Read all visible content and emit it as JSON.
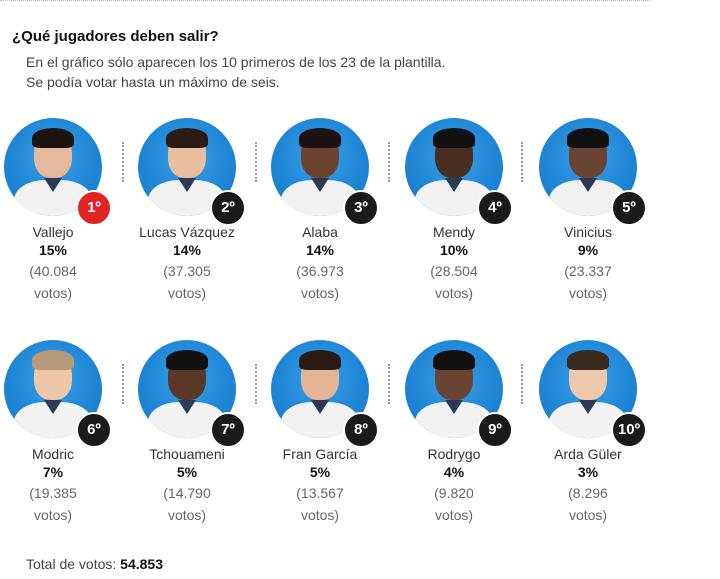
{
  "title": "¿Qué jugadores deben salir?",
  "subtitle": [
    "En el gráfico sólo aparecen los 10 primeros de los 23 de la plantilla.",
    "Se podía votar hasta un máximo de seis."
  ],
  "total_label": "Total de votos:",
  "total_value": "54.853",
  "colors": {
    "circle": "#1f86d6",
    "rank_badge": "#1a1a1a",
    "rank_badge_first": "#e02424"
  },
  "chart_data": {
    "type": "table",
    "columns": [
      "rank",
      "name",
      "percent",
      "votes"
    ],
    "rows": [
      {
        "rank": "1º",
        "name": "Vallejo",
        "percent": "15%",
        "votes_open": "(40.084",
        "votes_close": "votos)",
        "value": 15,
        "votes": 40084
      },
      {
        "rank": "2º",
        "name": "Lucas Vázquez",
        "percent": "14%",
        "votes_open": "(37.305",
        "votes_close": "votos)",
        "value": 14,
        "votes": 37305
      },
      {
        "rank": "3º",
        "name": "Alaba",
        "percent": "14%",
        "votes_open": "(36.973",
        "votes_close": "votos)",
        "value": 14,
        "votes": 36973
      },
      {
        "rank": "4º",
        "name": "Mendy",
        "percent": "10%",
        "votes_open": "(28.504",
        "votes_close": "votos)",
        "value": 10,
        "votes": 28504
      },
      {
        "rank": "5º",
        "name": "Vinicius",
        "percent": "9%",
        "votes_open": "(23.337",
        "votes_close": "votos)",
        "value": 9,
        "votes": 23337
      },
      {
        "rank": "6º",
        "name": "Modric",
        "percent": "7%",
        "votes_open": "(19.385",
        "votes_close": "votos)",
        "value": 7,
        "votes": 19385
      },
      {
        "rank": "7º",
        "name": "Tchouameni",
        "percent": "5%",
        "votes_open": "(14.790",
        "votes_close": "votos)",
        "value": 5,
        "votes": 14790
      },
      {
        "rank": "8º",
        "name": "Fran García",
        "percent": "5%",
        "votes_open": "(13.567",
        "votes_close": "votos)",
        "value": 5,
        "votes": 13567
      },
      {
        "rank": "9º",
        "name": "Rodrygo",
        "percent": "4%",
        "votes_open": "(9.820",
        "votes_close": "votos)",
        "value": 4,
        "votes": 9820
      },
      {
        "rank": "10º",
        "name": "Arda Güler",
        "percent": "3%",
        "votes_open": "(8.296",
        "votes_close": "votos)",
        "value": 3,
        "votes": 8296
      }
    ]
  }
}
